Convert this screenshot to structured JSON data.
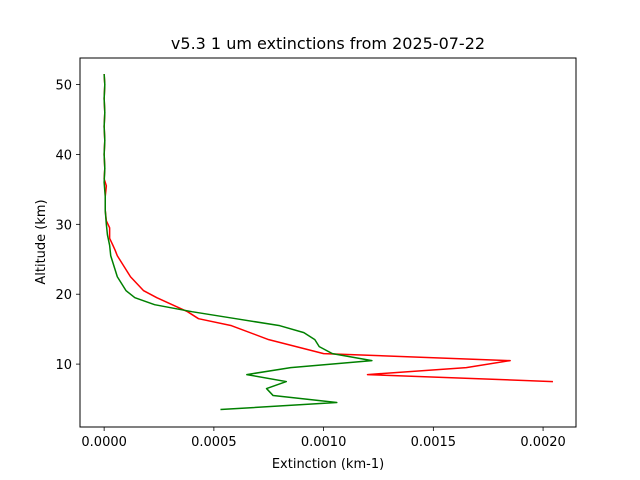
{
  "chart_data": {
    "type": "line",
    "title": "v5.3 1 um extinctions from 2025-07-22",
    "xlabel": "Extinction (km-1)",
    "ylabel": "Altitude (km)",
    "xlim": [
      -0.00011,
      0.00215
    ],
    "ylim": [
      1.0,
      53.8
    ],
    "xticks": [
      0.0,
      0.0005,
      0.001,
      0.0015,
      0.002
    ],
    "xtick_labels": [
      "0.0000",
      "0.0005",
      "0.0010",
      "0.0015",
      "0.0020"
    ],
    "yticks": [
      10,
      20,
      30,
      40,
      50
    ],
    "ytick_labels": [
      "10",
      "20",
      "30",
      "40",
      "50"
    ],
    "grid": false,
    "legend": false,
    "colors": [
      "#ff0000",
      "#008000"
    ],
    "series": [
      {
        "color": "#ff0000",
        "points": [
          [
            0.002045,
            7.5
          ],
          [
            0.0012,
            8.5
          ],
          [
            0.00165,
            9.5
          ],
          [
            0.00185,
            10.5
          ],
          [
            0.001,
            11.5
          ],
          [
            0.00075,
            13.5
          ],
          [
            0.00058,
            15.5
          ],
          [
            0.00043,
            16.5
          ],
          [
            0.00038,
            17.5
          ],
          [
            0.00031,
            18.5
          ],
          [
            0.00024,
            19.5
          ],
          [
            0.00018,
            20.5
          ],
          [
            0.00015,
            21.5
          ],
          [
            0.00012,
            22.5
          ],
          [
            0.0001,
            23.5
          ],
          [
            8e-05,
            24.5
          ],
          [
            6e-05,
            25.5
          ],
          [
            5e-05,
            26.3
          ],
          [
            4e-05,
            27.0
          ],
          [
            2.5e-05,
            28.0
          ],
          [
            2.5e-05,
            29.5
          ],
          [
            1e-05,
            30.5
          ],
          [
            5e-06,
            32.0
          ],
          [
            5e-06,
            34.0
          ],
          [
            1e-05,
            35.5
          ],
          [
            0.0,
            36.5
          ],
          [
            3e-06,
            38.0
          ],
          [
            0.0,
            40.0
          ],
          [
            3e-06,
            42.0
          ],
          [
            0.0,
            44.0
          ],
          [
            3e-06,
            46.0
          ],
          [
            0.0,
            48.0
          ],
          [
            3e-06,
            50.0
          ],
          [
            0.0,
            51.5
          ]
        ]
      },
      {
        "color": "#008000",
        "points": [
          [
            0.00053,
            3.5
          ],
          [
            0.00106,
            4.5
          ],
          [
            0.00077,
            5.5
          ],
          [
            0.00074,
            6.5
          ],
          [
            0.00083,
            7.5
          ],
          [
            0.00065,
            8.5
          ],
          [
            0.00085,
            9.5
          ],
          [
            0.00122,
            10.5
          ],
          [
            0.00104,
            11.5
          ],
          [
            0.00098,
            12.5
          ],
          [
            0.00096,
            13.5
          ],
          [
            0.00091,
            14.5
          ],
          [
            0.0008,
            15.5
          ],
          [
            0.0006,
            16.5
          ],
          [
            0.0004,
            17.5
          ],
          [
            0.00023,
            18.5
          ],
          [
            0.00014,
            19.5
          ],
          [
            0.0001,
            20.5
          ],
          [
            8e-05,
            21.5
          ],
          [
            6e-05,
            22.5
          ],
          [
            5e-05,
            23.5
          ],
          [
            4e-05,
            24.5
          ],
          [
            3e-05,
            25.5
          ],
          [
            2.5e-05,
            27.0
          ],
          [
            1.5e-05,
            28.5
          ],
          [
            1e-05,
            30.0
          ],
          [
            5e-06,
            32.0
          ],
          [
            5e-06,
            34.0
          ],
          [
            0.0,
            36.0
          ],
          [
            3e-06,
            38.0
          ],
          [
            0.0,
            40.0
          ],
          [
            3e-06,
            42.0
          ],
          [
            0.0,
            44.0
          ],
          [
            3e-06,
            46.0
          ],
          [
            0.0,
            48.0
          ],
          [
            3e-06,
            50.0
          ],
          [
            0.0,
            51.5
          ]
        ]
      }
    ]
  }
}
